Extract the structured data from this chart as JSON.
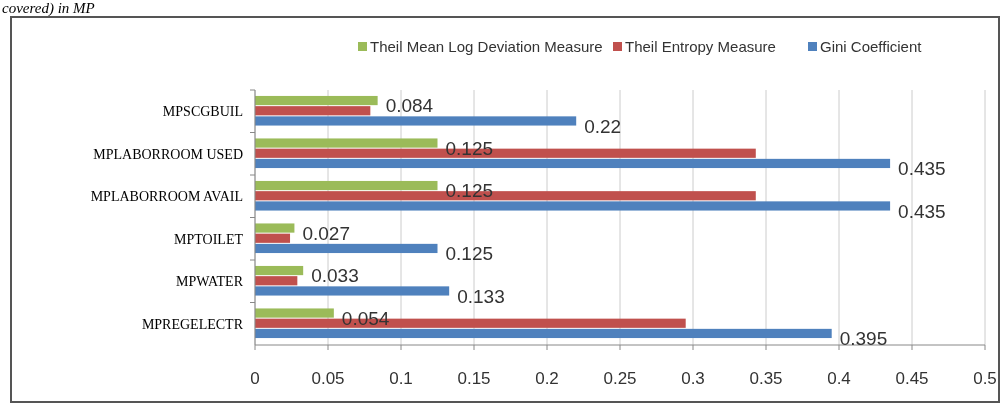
{
  "chart_data": {
    "type": "bar",
    "orientation": "horizontal",
    "annotations": [
      "covered) in MP"
    ],
    "categories": [
      "MPSCGBUIL",
      "MPLABORROOM USED",
      "MPLABORROOM AVAIL",
      "MPTOILET",
      "MPWATER",
      "MPREGELECTR"
    ],
    "series": [
      {
        "name": "Theil Mean Log Deviation Measure",
        "color": "#9bbb59",
        "values": [
          0.084,
          0.125,
          0.125,
          0.027,
          0.033,
          0.054
        ],
        "value_labels": [
          "0.084",
          "0.125",
          "0.125",
          "0.027",
          "0.033",
          "0.054"
        ]
      },
      {
        "name": "Theil Entropy Measure",
        "color": "#c0504d",
        "values": [
          0.079,
          0.343,
          0.343,
          0.024,
          0.029,
          0.295
        ]
      },
      {
        "name": "Gini Coefficient",
        "color": "#4f81bd",
        "values": [
          0.22,
          0.435,
          0.435,
          0.125,
          0.133,
          0.395
        ],
        "value_labels": [
          "0.22",
          "0.435",
          "0.435",
          "0.125",
          "0.133",
          "0.395"
        ]
      }
    ],
    "xlim": [
      0,
      0.5
    ],
    "xticks": [
      0,
      0.05,
      0.1,
      0.15,
      0.2,
      0.25,
      0.3,
      0.35,
      0.4,
      0.45,
      0.5
    ],
    "grid": "x",
    "legend": "top"
  }
}
